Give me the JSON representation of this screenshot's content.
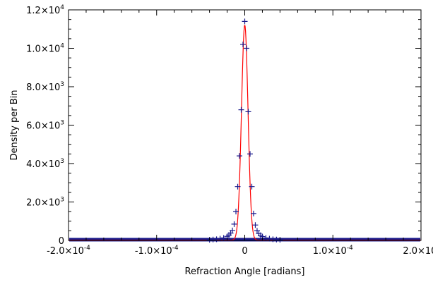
{
  "chart_data": {
    "type": "scatter",
    "title": "",
    "xlabel": "Refraction Angle [radians]",
    "ylabel": "Density per Bin",
    "xlim": [
      -0.0002,
      0.0002
    ],
    "ylim": [
      0,
      12000
    ],
    "grid": false,
    "legend": "none",
    "x_ticks": [
      {
        "value": -0.0002,
        "mant": "-2.0",
        "exp": "-4"
      },
      {
        "value": -0.0001,
        "mant": "-1.0",
        "exp": "-4"
      },
      {
        "value": 0,
        "mant": "0",
        "exp": ""
      },
      {
        "value": 0.0001,
        "mant": "1.0",
        "exp": "-4"
      },
      {
        "value": 0.0002,
        "mant": "2.0",
        "exp": "-"
      }
    ],
    "y_ticks": [
      {
        "value": 0,
        "mant": "0",
        "exp": ""
      },
      {
        "value": 2000,
        "mant": "2.0",
        "exp": "3"
      },
      {
        "value": 4000,
        "mant": "4.0",
        "exp": "3"
      },
      {
        "value": 6000,
        "mant": "6.0",
        "exp": "3"
      },
      {
        "value": 8000,
        "mant": "8.0",
        "exp": "3"
      },
      {
        "value": 10000,
        "mant": "1.0",
        "exp": "4"
      },
      {
        "value": 12000,
        "mant": "1.2",
        "exp": "4"
      }
    ],
    "series": [
      {
        "kind": "points",
        "marker": "plus",
        "color": "#1a1a8c",
        "x": [
          -4e-05,
          -3.6e-05,
          -3.2e-05,
          -2.8e-05,
          -2.4e-05,
          -2e-05,
          -1.8e-05,
          -1.6e-05,
          -1.4e-05,
          -1.2e-05,
          -1e-05,
          -8e-06,
          -6e-06,
          -4e-06,
          -2e-06,
          0,
          2e-06,
          4e-06,
          6e-06,
          8e-06,
          1e-05,
          1.2e-05,
          1.4e-05,
          1.6e-05,
          1.8e-05,
          2e-05,
          2.4e-05,
          2.8e-05,
          3.2e-05,
          3.6e-05,
          4e-05
        ],
        "y": [
          30,
          45,
          60,
          90,
          130,
          210,
          280,
          380,
          520,
          850,
          1500,
          2800,
          4400,
          6800,
          10200,
          11400,
          10000,
          6700,
          4500,
          2800,
          1400,
          800,
          500,
          360,
          270,
          200,
          130,
          90,
          60,
          45,
          30
        ]
      },
      {
        "kind": "fit",
        "color": "#ff0000",
        "model": "gaussian",
        "amplitude": 11200,
        "center": 0,
        "sigma": 3.7e-06,
        "baseline": 15
      }
    ],
    "baseline_band": {
      "color": "#1a1a8c",
      "y": 20
    }
  }
}
